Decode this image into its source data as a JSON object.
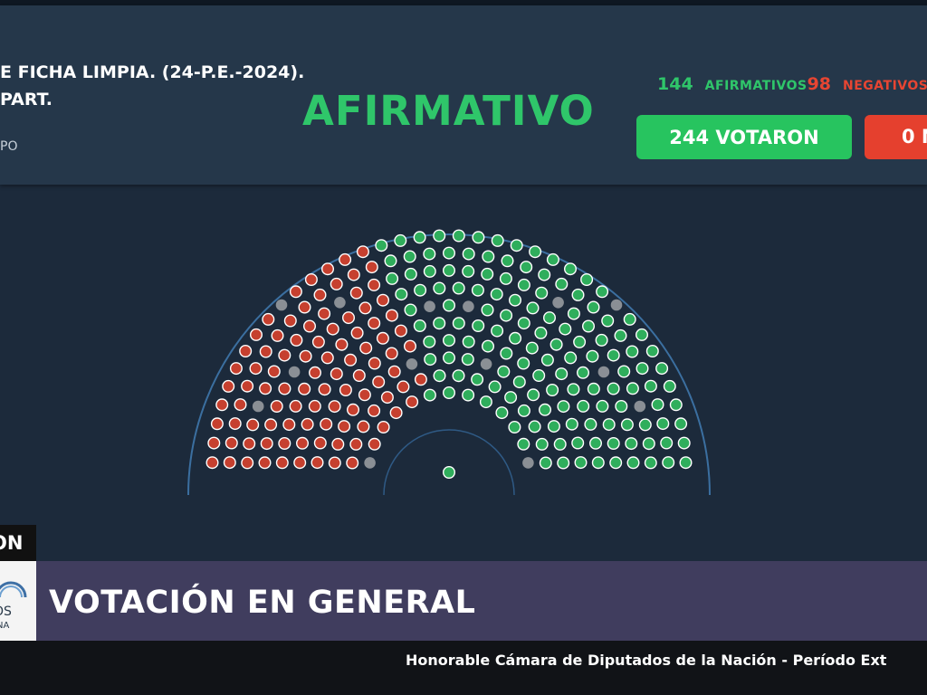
{
  "header": {
    "title_line1": "E FICHA LIMPIA. (24-P.E.-2024).",
    "title_line2": "PART.",
    "small_text": "PO",
    "result": "AFIRMATIVO",
    "afirmativos_count": "144",
    "afirmativos_label": "AFIRMATIVOS",
    "negativos_count": "98",
    "negativos_label": "NEGATIVOS",
    "votaron": "244 VOTARON",
    "red_pill": "0 N"
  },
  "chamber": {
    "vote_colors": {
      "afirmativo": "#2fae5c",
      "negativo": "#c6402f",
      "ausente": "#8a8f95",
      "presidente": "#8fb6e0"
    },
    "seat_counts_ausente": 14,
    "center_seat": "presidente"
  },
  "live_tag": "ON",
  "logo": {
    "line1": "OS",
    "line2": "NA"
  },
  "banner": {
    "title": "VOTACIÓN EN GENERAL"
  },
  "footer": {
    "text": "Honorable Cámara de Diputados de la Nación - Período Ext"
  }
}
